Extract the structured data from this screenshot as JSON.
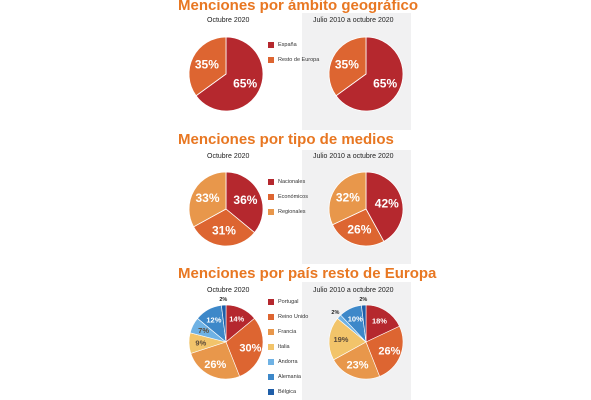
{
  "chart_data": [
    {
      "type": "pie",
      "title": "Menciones por ámbito geográfico",
      "subtitle": "Octubre 2020",
      "categories": [
        "España",
        "Resto de Europa"
      ],
      "values": [
        65,
        35
      ],
      "value_labels": [
        "65%",
        "35%"
      ],
      "colors": [
        "#b5282e",
        "#dd6531"
      ]
    },
    {
      "type": "pie",
      "subtitle": "Julio 2010 a octubre 2020",
      "categories": [
        "España",
        "Resto de Europa"
      ],
      "values": [
        65,
        35
      ],
      "value_labels": [
        "65%",
        "35%"
      ],
      "colors": [
        "#b5282e",
        "#dd6531"
      ]
    },
    {
      "type": "pie",
      "title": "Menciones por tipo de medios",
      "subtitle": "Octubre 2020",
      "categories": [
        "Nacionales",
        "Económicos",
        "Regionales"
      ],
      "values": [
        36,
        31,
        33
      ],
      "value_labels": [
        "36%",
        "31%",
        "33%"
      ],
      "colors": [
        "#b5282e",
        "#dd6531",
        "#e8974b"
      ]
    },
    {
      "type": "pie",
      "subtitle": "Julio 2010 a octubre 2020",
      "categories": [
        "Nacionales",
        "Económicos",
        "Regionales"
      ],
      "values": [
        42,
        26,
        32
      ],
      "value_labels": [
        "42%",
        "26%",
        "32%"
      ],
      "colors": [
        "#b5282e",
        "#dd6531",
        "#e8974b"
      ]
    },
    {
      "type": "pie",
      "title": "Menciones por país resto de Europa",
      "subtitle": "Octubre 2020",
      "categories": [
        "Portugal",
        "Reino Unido",
        "Francia",
        "Italia",
        "Andorra",
        "Alemania",
        "Bélgica"
      ],
      "values": [
        14,
        30,
        26,
        9,
        7,
        12,
        2
      ],
      "value_labels": [
        "14%",
        "30%",
        "26%",
        "9%",
        "7%",
        "12%",
        "2%"
      ],
      "colors": [
        "#b5282e",
        "#dd6531",
        "#e8974b",
        "#f2c46a",
        "#6fb2e4",
        "#3d88c9",
        "#1f5ea8"
      ]
    },
    {
      "type": "pie",
      "subtitle": "Julio 2010 a octubre 2020",
      "categories": [
        "Portugal",
        "Reino Unido",
        "Francia",
        "Italia",
        "Andorra",
        "Alemania",
        "Bélgica"
      ],
      "values": [
        18,
        26,
        23,
        19,
        2,
        10,
        2
      ],
      "value_labels": [
        "18%",
        "26%",
        "23%",
        "19%",
        "2%",
        "10%",
        "2%"
      ],
      "colors": [
        "#b5282e",
        "#dd6531",
        "#e8974b",
        "#f2c46a",
        "#6fb2e4",
        "#3d88c9",
        "#1f5ea8"
      ]
    }
  ]
}
